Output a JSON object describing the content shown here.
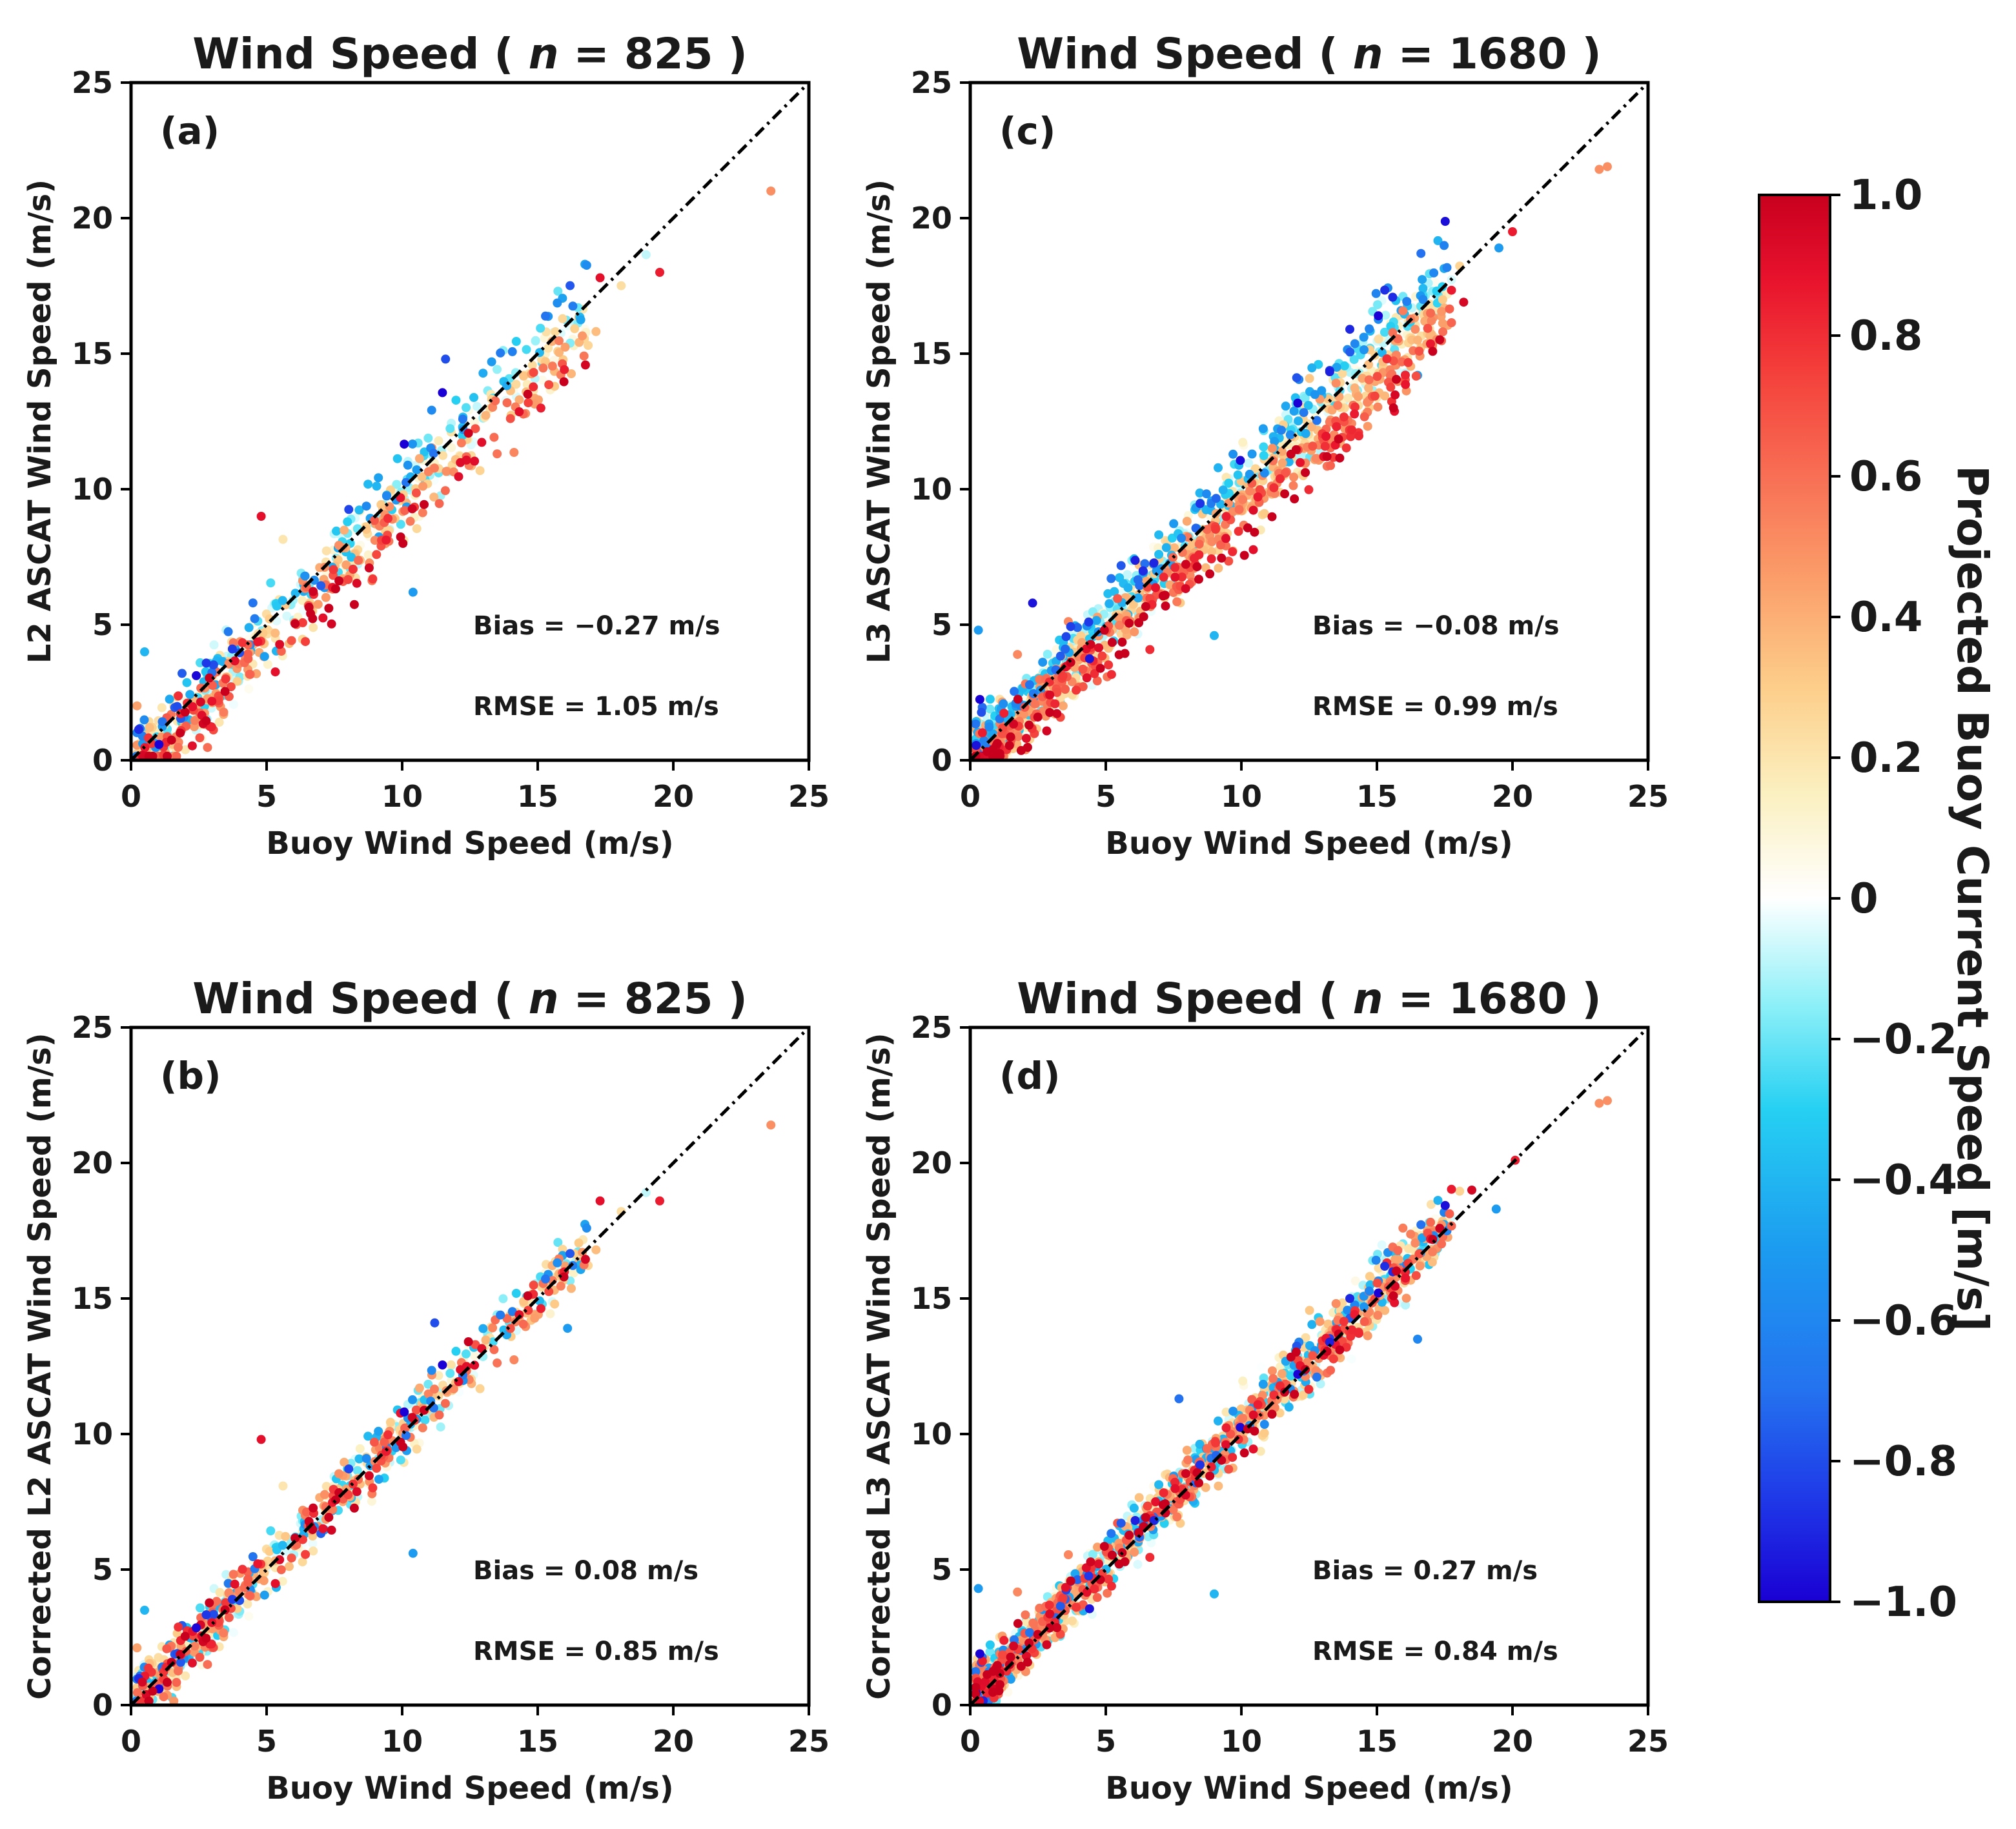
{
  "chart_data": {
    "type": "scatter",
    "figure_width": 3123,
    "figure_height": 2834,
    "panels": [
      {
        "id": "a",
        "panel_label": "(a)",
        "title": "Wind Speed ( ",
        "title_n_symbol": "n",
        "title_n_value": " = 825 )",
        "xlabel": "Buoy Wind Speed (m/s)",
        "ylabel": "L2 ASCAT Wind Speed (m/s)",
        "xlim": [
          0,
          25
        ],
        "ylim": [
          0,
          25
        ],
        "xticks": [
          0,
          5,
          10,
          15,
          20,
          25
        ],
        "yticks": [
          0,
          5,
          10,
          15,
          20,
          25
        ],
        "bias_text": "Bias  = −0.27 m/s",
        "rmse_text": "RMSE = 1.05 m/s",
        "n_points": 825,
        "scatter_params": {
          "bias": -0.27,
          "spread": 1.05,
          "current_effect": 0.9,
          "seed": 11,
          "xmax": 17.5
        },
        "outliers": [
          [
            23.6,
            21.0,
            0.5
          ],
          [
            19.5,
            18.0,
            0.85
          ],
          [
            17.3,
            17.8,
            0.9
          ],
          [
            11.6,
            14.8,
            -0.8
          ],
          [
            13.3,
            14.7,
            -0.5
          ],
          [
            10.4,
            6.2,
            -0.5
          ],
          [
            4.8,
            9.0,
            0.9
          ],
          [
            0.5,
            4.0,
            -0.4
          ]
        ]
      },
      {
        "id": "b",
        "panel_label": "(b)",
        "title": "Wind Speed ( ",
        "title_n_symbol": "n",
        "title_n_value": " = 825 )",
        "xlabel": "Buoy Wind Speed (m/s)",
        "ylabel": "Corrected L2 ASCAT Wind Speed (m/s)",
        "xlim": [
          0,
          25
        ],
        "ylim": [
          0,
          25
        ],
        "xticks": [
          0,
          5,
          10,
          15,
          20,
          25
        ],
        "yticks": [
          0,
          5,
          10,
          15,
          20,
          25
        ],
        "bias_text": "Bias  =  0.08 m/s",
        "rmse_text": "RMSE = 0.85 m/s",
        "n_points": 825,
        "scatter_params": {
          "bias": 0.08,
          "spread": 0.85,
          "current_effect": 0.15,
          "seed": 11,
          "xmax": 17.5
        },
        "outliers": [
          [
            23.6,
            21.4,
            0.5
          ],
          [
            19.5,
            18.6,
            0.85
          ],
          [
            17.3,
            18.6,
            0.9
          ],
          [
            11.2,
            14.1,
            -0.8
          ],
          [
            16.1,
            13.9,
            -0.5
          ],
          [
            10.4,
            5.6,
            -0.5
          ],
          [
            4.8,
            9.8,
            0.9
          ],
          [
            0.5,
            3.5,
            -0.4
          ]
        ]
      },
      {
        "id": "c",
        "panel_label": "(c)",
        "title": "Wind Speed ( ",
        "title_n_symbol": "n",
        "title_n_value": " = 1680 )",
        "xlabel": "Buoy Wind Speed (m/s)",
        "ylabel": "L3 ASCAT Wind Speed (m/s)",
        "xlim": [
          0,
          25
        ],
        "ylim": [
          0,
          25
        ],
        "xticks": [
          0,
          5,
          10,
          15,
          20,
          25
        ],
        "yticks": [
          0,
          5,
          10,
          15,
          20,
          25
        ],
        "bias_text": "Bias  = −0.08 m/s",
        "rmse_text": "RMSE = 0.99 m/s",
        "n_points": 1680,
        "scatter_params": {
          "bias": -0.08,
          "spread": 0.99,
          "current_effect": 1.0,
          "seed": 29,
          "xmax": 18.5
        },
        "outliers": [
          [
            23.2,
            21.8,
            0.5
          ],
          [
            23.5,
            21.9,
            0.5
          ],
          [
            20.0,
            19.5,
            0.85
          ],
          [
            19.5,
            18.9,
            -0.5
          ],
          [
            18.2,
            16.9,
            0.95
          ],
          [
            16.5,
            14.2,
            -0.5
          ],
          [
            16.7,
            17.0,
            -0.6
          ],
          [
            14.0,
            15.9,
            -0.9
          ],
          [
            9.0,
            4.6,
            -0.4
          ],
          [
            2.3,
            5.8,
            -0.95
          ],
          [
            0.3,
            4.8,
            -0.5
          ]
        ]
      },
      {
        "id": "d",
        "panel_label": "(d)",
        "title": "Wind Speed ( ",
        "title_n_symbol": "n",
        "title_n_value": " = 1680 )",
        "xlabel": "Buoy Wind Speed (m/s)",
        "ylabel": "Corrected L3 ASCAT Wind Speed (m/s)",
        "xlim": [
          0,
          25
        ],
        "ylim": [
          0,
          25
        ],
        "xticks": [
          0,
          5,
          10,
          15,
          20,
          25
        ],
        "yticks": [
          0,
          5,
          10,
          15,
          20,
          25
        ],
        "bias_text": "Bias  =  0.27 m/s",
        "rmse_text": "RMSE = 0.84 m/s",
        "n_points": 1680,
        "scatter_params": {
          "bias": 0.27,
          "spread": 0.84,
          "current_effect": 0.15,
          "seed": 29,
          "xmax": 18.5
        },
        "outliers": [
          [
            23.2,
            22.2,
            0.5
          ],
          [
            23.5,
            22.3,
            0.5
          ],
          [
            20.1,
            20.1,
            0.85
          ],
          [
            19.4,
            18.3,
            -0.5
          ],
          [
            18.5,
            19.0,
            0.95
          ],
          [
            16.5,
            13.5,
            -0.6
          ],
          [
            14.0,
            15.0,
            -0.9
          ],
          [
            9.0,
            4.1,
            -0.4
          ],
          [
            0.3,
            4.3,
            -0.5
          ],
          [
            7.7,
            11.3,
            -0.7
          ]
        ]
      }
    ],
    "colorbar": {
      "label": "Projected Buoy Current Speed [m/s]",
      "range": [
        -1.0,
        1.0
      ],
      "ticks": [
        1.0,
        0.8,
        0.6,
        0.4,
        0.2,
        0,
        -0.2,
        -0.4,
        -0.6,
        -0.8,
        -1.0
      ],
      "tick_labels": [
        "1.0",
        "0.8",
        "0.6",
        "0.4",
        "0.2",
        "0",
        "−0.2",
        "−0.4",
        "−0.6",
        "−0.8",
        "−1.0"
      ],
      "colormap": [
        [
          -1.0,
          "#1a00d4"
        ],
        [
          -0.85,
          "#1f3ae8"
        ],
        [
          -0.7,
          "#2472ef"
        ],
        [
          -0.5,
          "#1c9bf0"
        ],
        [
          -0.3,
          "#26d0f2"
        ],
        [
          -0.15,
          "#8ef0f8"
        ],
        [
          0.0,
          "#ffffff"
        ],
        [
          0.15,
          "#fbf0c0"
        ],
        [
          0.3,
          "#fdce8a"
        ],
        [
          0.45,
          "#fb9f6a"
        ],
        [
          0.6,
          "#f86f55"
        ],
        [
          0.75,
          "#f43f3a"
        ],
        [
          0.88,
          "#e8122d"
        ],
        [
          1.0,
          "#c8001e"
        ]
      ]
    }
  }
}
